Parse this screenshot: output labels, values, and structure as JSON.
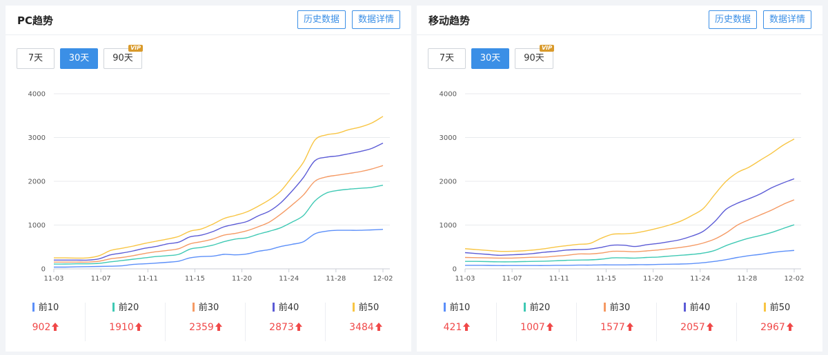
{
  "panels": [
    {
      "title": "PC趋势",
      "history_label": "历史数据",
      "detail_label": "数据详情",
      "tabs": [
        {
          "label": "7天"
        },
        {
          "label": "30天"
        },
        {
          "label": "90天"
        }
      ],
      "vip_badge": "VIP",
      "chart_data": {
        "type": "line",
        "ylim": [
          0,
          4000
        ],
        "y_ticks": [
          "0",
          "1000",
          "2000",
          "3000",
          "4000"
        ],
        "x_tick_labels": [
          "11-03",
          "11-07",
          "11-11",
          "11-15",
          "11-20",
          "11-24",
          "11-28",
          "12-02"
        ],
        "grid": true,
        "series": [
          {
            "name": "前10",
            "color": "#5b8ff9",
            "values": [
              40,
              40,
              45,
              50,
              55,
              60,
              70,
              100,
              115,
              130,
              150,
              175,
              250,
              280,
              290,
              330,
              320,
              340,
              400,
              440,
              510,
              560,
              620,
              800,
              860,
              880,
              880,
              880,
              890,
              902
            ]
          },
          {
            "name": "前20",
            "color": "#3fc9b4",
            "values": [
              110,
              110,
              115,
              115,
              125,
              160,
              190,
              220,
              250,
              280,
              300,
              330,
              450,
              490,
              540,
              620,
              680,
              710,
              790,
              860,
              940,
              1070,
              1220,
              1550,
              1730,
              1790,
              1820,
              1840,
              1860,
              1910
            ]
          },
          {
            "name": "前30",
            "color": "#f59a64",
            "values": [
              155,
              155,
              155,
              155,
              175,
              230,
              260,
              300,
              350,
              390,
              420,
              460,
              570,
              620,
              680,
              770,
              810,
              870,
              960,
              1070,
              1250,
              1460,
              1690,
              2000,
              2100,
              2140,
              2180,
              2220,
              2280,
              2359
            ]
          },
          {
            "name": "前40",
            "color": "#5b5bd6",
            "values": [
              200,
              200,
              200,
              200,
              230,
              320,
              360,
              410,
              470,
              510,
              570,
              610,
              730,
              770,
              850,
              960,
              1020,
              1080,
              1210,
              1320,
              1510,
              1780,
              2090,
              2470,
              2550,
              2580,
              2630,
              2680,
              2750,
              2873
            ]
          },
          {
            "name": "前50",
            "color": "#f8c543",
            "values": [
              250,
              250,
              245,
              250,
              300,
              420,
              470,
              520,
              580,
              630,
              680,
              740,
              860,
              910,
              1020,
              1150,
              1220,
              1300,
              1430,
              1580,
              1780,
              2100,
              2440,
              2940,
              3060,
              3100,
              3180,
              3240,
              3330,
              3484
            ]
          }
        ]
      },
      "legend": [
        {
          "name": "前10",
          "value": "902",
          "color": "#5b8ff9"
        },
        {
          "name": "前20",
          "value": "1910",
          "color": "#3fc9b4"
        },
        {
          "name": "前30",
          "value": "2359",
          "color": "#f59a64"
        },
        {
          "name": "前40",
          "value": "2873",
          "color": "#5b5bd6"
        },
        {
          "name": "前50",
          "value": "3484",
          "color": "#f8c543"
        }
      ]
    },
    {
      "title": "移动趋势",
      "history_label": "历史数据",
      "detail_label": "数据详情",
      "tabs": [
        {
          "label": "7天"
        },
        {
          "label": "30天"
        },
        {
          "label": "90天"
        }
      ],
      "vip_badge": "VIP",
      "chart_data": {
        "type": "line",
        "ylim": [
          0,
          4000
        ],
        "y_ticks": [
          "0",
          "1000",
          "2000",
          "3000",
          "4000"
        ],
        "x_tick_labels": [
          "11-03",
          "11-07",
          "11-11",
          "11-15",
          "11-20",
          "11-24",
          "11-28",
          "12-02"
        ],
        "grid": true,
        "series": [
          {
            "name": "前10",
            "color": "#5b8ff9",
            "values": [
              80,
              80,
              78,
              75,
              75,
              75,
              75,
              75,
              80,
              80,
              85,
              85,
              90,
              90,
              90,
              95,
              95,
              100,
              105,
              110,
              120,
              140,
              170,
              210,
              260,
              300,
              330,
              370,
              400,
              421
            ]
          },
          {
            "name": "前20",
            "color": "#3fc9b4",
            "values": [
              170,
              170,
              165,
              160,
              160,
              165,
              170,
              175,
              185,
              195,
              200,
              205,
              220,
              250,
              250,
              245,
              260,
              270,
              290,
              310,
              330,
              360,
              420,
              530,
              620,
              700,
              760,
              830,
              920,
              1007
            ]
          },
          {
            "name": "前30",
            "color": "#f59a64",
            "values": [
              260,
              255,
              250,
              245,
              245,
              255,
              265,
              270,
              290,
              310,
              340,
              340,
              360,
              400,
              400,
              390,
              410,
              430,
              460,
              490,
              530,
              590,
              680,
              820,
              1000,
              1120,
              1230,
              1340,
              1470,
              1577
            ]
          },
          {
            "name": "前40",
            "color": "#5b5bd6",
            "values": [
              370,
              350,
              330,
              310,
              320,
              330,
              350,
              380,
              400,
              430,
              440,
              450,
              490,
              540,
              540,
              510,
              550,
              580,
              620,
              670,
              750,
              860,
              1080,
              1360,
              1500,
              1600,
              1710,
              1850,
              1960,
              2057
            ]
          },
          {
            "name": "前50",
            "color": "#f8c543",
            "values": [
              460,
              440,
              420,
              400,
              400,
              410,
              430,
              460,
              500,
              530,
              560,
              580,
              700,
              790,
              800,
              820,
              870,
              930,
              1000,
              1090,
              1220,
              1380,
              1700,
              2000,
              2200,
              2320,
              2480,
              2640,
              2820,
              2967
            ]
          }
        ]
      },
      "legend": [
        {
          "name": "前10",
          "value": "421",
          "color": "#5b8ff9"
        },
        {
          "name": "前20",
          "value": "1007",
          "color": "#3fc9b4"
        },
        {
          "name": "前30",
          "value": "1577",
          "color": "#f59a64"
        },
        {
          "name": "前40",
          "value": "2057",
          "color": "#5b5bd6"
        },
        {
          "name": "前50",
          "value": "2967",
          "color": "#f8c543"
        }
      ]
    }
  ]
}
